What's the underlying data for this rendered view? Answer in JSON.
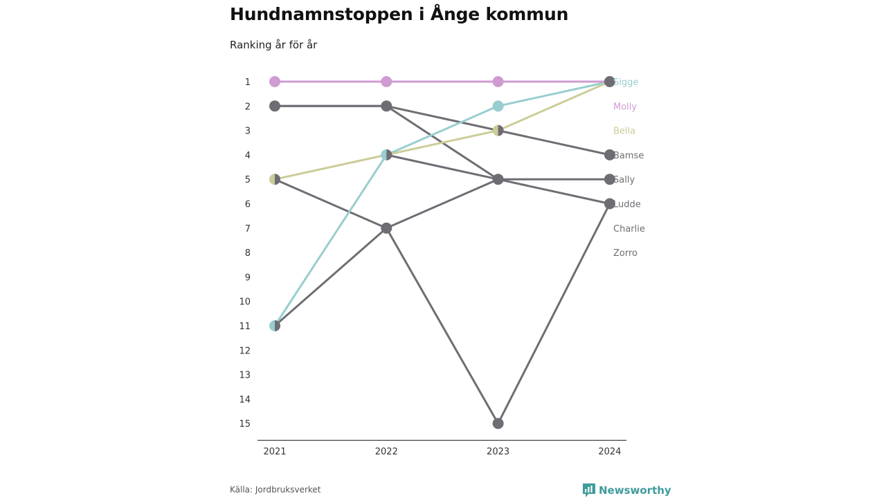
{
  "header": {
    "title": "Hundnamnstoppen i Ånge kommun",
    "subtitle": "Ranking år för år"
  },
  "footer": {
    "source": "Källa: Jordbruksverket",
    "brand": "Newsworthy"
  },
  "colors": {
    "gray": "#6e6d73",
    "teal": "#98cecf",
    "pink": "#cf9bd1",
    "olive": "#cccc99",
    "brand": "#3e9b9c"
  },
  "chart_data": {
    "type": "line",
    "chart_kind": "bump",
    "title": "Hundnamnstoppen i Ånge kommun",
    "subtitle": "Ranking år för år",
    "x": [
      2021,
      2022,
      2023,
      2024
    ],
    "y_ticks": [
      1,
      2,
      3,
      4,
      5,
      6,
      7,
      8,
      9,
      10,
      11,
      12,
      13,
      14,
      15
    ],
    "ylim": [
      1,
      15
    ],
    "y_reversed": true,
    "grid": false,
    "legend": "direct labels at right",
    "series": [
      {
        "name": "Sigge",
        "color": "#98cecf",
        "values": [
          11,
          4,
          2,
          1
        ]
      },
      {
        "name": "Molly",
        "color": "#cf9bd1",
        "values": [
          1,
          1,
          1,
          1
        ]
      },
      {
        "name": "Bella",
        "color": "#cccc99",
        "values": [
          5,
          4,
          3,
          1
        ]
      },
      {
        "name": "Bamse",
        "color": "#6e6d73",
        "values": [
          2,
          2,
          3,
          4
        ]
      },
      {
        "name": "Sally",
        "color": "#6e6d73",
        "values": [
          11,
          7,
          5,
          5
        ]
      },
      {
        "name": "Ludde",
        "color": "#6e6d73",
        "values": [
          5,
          7,
          15,
          6
        ]
      },
      {
        "name": "Charlie",
        "color": "#6e6d73",
        "values": [
          2,
          2,
          5,
          6
        ]
      },
      {
        "name": "Zorro",
        "color": "#6e6d73",
        "values": [
          null,
          4,
          5,
          null
        ]
      }
    ],
    "label_ranks": [
      1,
      2,
      3,
      4,
      5,
      6,
      7,
      8
    ]
  }
}
